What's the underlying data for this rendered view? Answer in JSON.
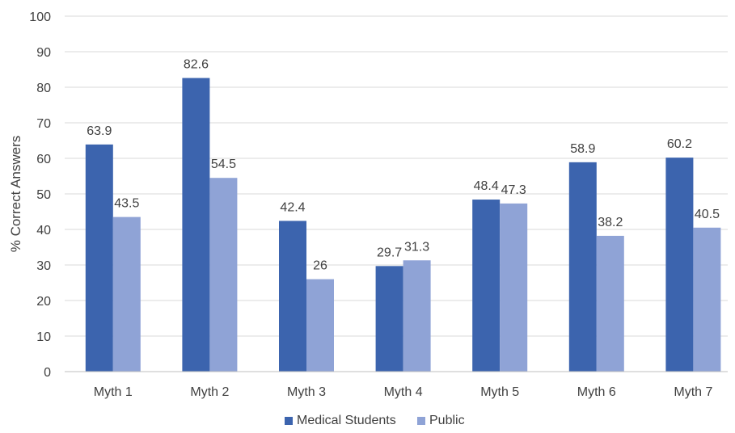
{
  "chart_data": {
    "type": "bar",
    "categories": [
      "Myth 1",
      "Myth 2",
      "Myth 3",
      "Myth 4",
      "Myth 5",
      "Myth 6",
      "Myth 7"
    ],
    "series": [
      {
        "name": "Medical Students",
        "color": "#3c64ae",
        "values": [
          63.9,
          82.6,
          42.4,
          29.7,
          48.4,
          58.9,
          60.2
        ]
      },
      {
        "name": "Public",
        "color": "#8fa3d6",
        "values": [
          43.5,
          54.5,
          26,
          31.3,
          47.3,
          38.2,
          40.5
        ]
      }
    ],
    "title": "",
    "xlabel": "",
    "ylabel": "% Correct Answers",
    "ylim": [
      0,
      100
    ],
    "yticks": [
      0,
      10,
      20,
      30,
      40,
      50,
      60,
      70,
      80,
      90,
      100
    ],
    "grid": true,
    "legend_position": "bottom-center"
  }
}
